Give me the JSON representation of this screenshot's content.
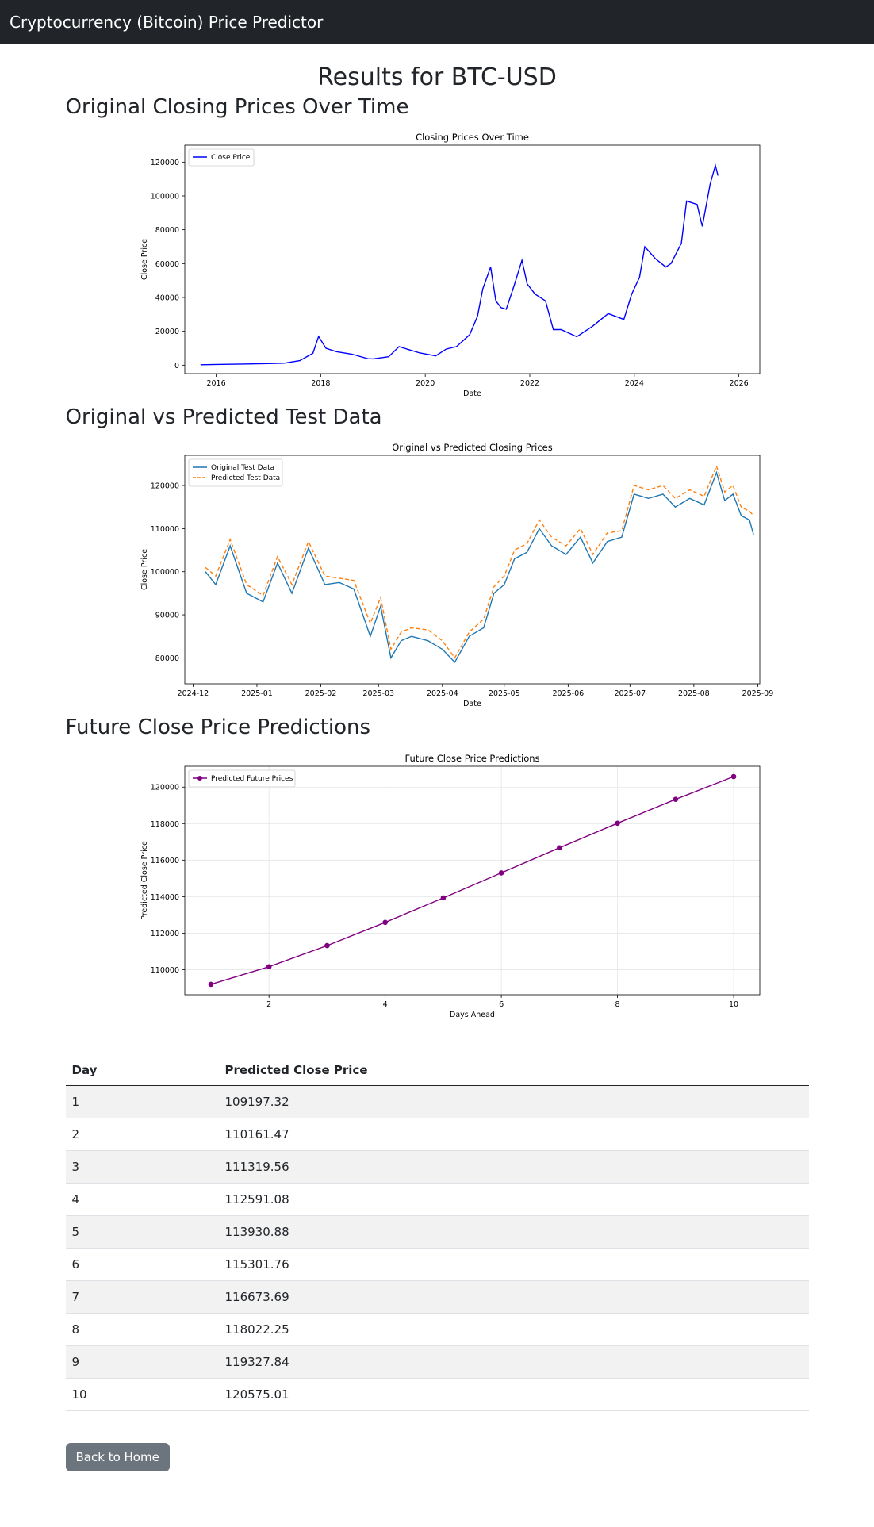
{
  "navbar": {
    "brand": "Cryptocurrency (Bitcoin) Price Predictor"
  },
  "page": {
    "title": "Results for BTC-USD",
    "section1_title": "Original Closing Prices Over Time",
    "section2_title": "Original vs Predicted Test Data",
    "section3_title": "Future Close Price Predictions"
  },
  "colors": {
    "navbar": "#212529",
    "close_price": "#0000ff",
    "original_test": "#1f77b4",
    "predicted_test": "#ff7f0e",
    "future": "#800080",
    "button": "#6c757d"
  },
  "chart_data": [
    {
      "type": "line",
      "title": "Closing Prices Over Time",
      "xlabel": "Date",
      "ylabel": "Close Price",
      "x_ticks": [
        "2016",
        "2018",
        "2020",
        "2022",
        "2024",
        "2026"
      ],
      "y_ticks": [
        "0",
        "20000",
        "40000",
        "60000",
        "80000",
        "100000",
        "120000"
      ],
      "xlim": [
        2015.4,
        2026.4
      ],
      "ylim": [
        -5000,
        130000
      ],
      "legend_position": "upper-left",
      "grid": false,
      "series": [
        {
          "name": "Close Price",
          "x": [
            2015.7,
            2016.0,
            2016.5,
            2017.0,
            2017.3,
            2017.6,
            2017.85,
            2017.96,
            2018.1,
            2018.3,
            2018.6,
            2018.9,
            2019.0,
            2019.3,
            2019.5,
            2019.7,
            2019.9,
            2020.2,
            2020.4,
            2020.6,
            2020.85,
            2021.0,
            2021.1,
            2021.25,
            2021.35,
            2021.45,
            2021.55,
            2021.7,
            2021.85,
            2021.95,
            2022.1,
            2022.3,
            2022.45,
            2022.6,
            2022.9,
            2023.2,
            2023.5,
            2023.8,
            2023.95,
            2024.1,
            2024.2,
            2024.4,
            2024.6,
            2024.7,
            2024.9,
            2025.0,
            2025.2,
            2025.3,
            2025.45,
            2025.55,
            2025.6
          ],
          "values": [
            230,
            430,
            650,
            960,
            1200,
            2700,
            7000,
            17000,
            10000,
            8000,
            6500,
            3800,
            3700,
            5000,
            11000,
            9000,
            7200,
            5500,
            9500,
            11000,
            18000,
            29000,
            45000,
            58000,
            38000,
            34000,
            33000,
            47000,
            62000,
            48000,
            42000,
            38000,
            21000,
            21000,
            16800,
            23000,
            30500,
            27000,
            42000,
            52000,
            70000,
            63000,
            58000,
            60000,
            72000,
            97000,
            95000,
            82000,
            107000,
            118000,
            112000
          ]
        }
      ]
    },
    {
      "type": "line",
      "title": "Original vs Predicted Closing Prices",
      "xlabel": "Date",
      "ylabel": "Close Price",
      "x_ticks": [
        "2024-12",
        "2025-01",
        "2025-02",
        "2025-03",
        "2025-04",
        "2025-05",
        "2025-06",
        "2025-07",
        "2025-08",
        "2025-09"
      ],
      "y_ticks": [
        "80000",
        "90000",
        "100000",
        "110000",
        "120000"
      ],
      "xlim": [
        0,
        279
      ],
      "ylim": [
        74000,
        127000
      ],
      "legend_position": "upper-left",
      "grid": false,
      "series": [
        {
          "name": "Original Test Data",
          "x": [
            10,
            15,
            22,
            30,
            38,
            45,
            52,
            60,
            68,
            75,
            82,
            90,
            95,
            100,
            105,
            110,
            118,
            125,
            131,
            138,
            145,
            150,
            155,
            160,
            166,
            172,
            178,
            185,
            192,
            198,
            205,
            212,
            218,
            225,
            232,
            238,
            245,
            252,
            258,
            262,
            266,
            270,
            274,
            276
          ],
          "values": [
            100000,
            97000,
            106000,
            95000,
            93000,
            102000,
            95000,
            105500,
            97000,
            97500,
            96000,
            85000,
            92000,
            80000,
            84000,
            85000,
            84000,
            82000,
            79000,
            85000,
            87000,
            95000,
            97000,
            103000,
            104500,
            110000,
            106000,
            104000,
            108000,
            102000,
            107000,
            108000,
            118000,
            117000,
            118000,
            115000,
            117000,
            115500,
            123000,
            116500,
            118000,
            113000,
            112000,
            108500
          ]
        },
        {
          "name": "Predicted Test Data",
          "x": [
            10,
            15,
            22,
            30,
            38,
            45,
            52,
            60,
            68,
            75,
            82,
            90,
            95,
            100,
            105,
            110,
            118,
            125,
            131,
            138,
            145,
            150,
            155,
            160,
            166,
            172,
            178,
            185,
            192,
            198,
            205,
            212,
            218,
            225,
            232,
            238,
            245,
            252,
            258,
            262,
            266,
            270,
            274,
            276
          ],
          "values": [
            101000,
            99000,
            107500,
            97000,
            94500,
            103500,
            97000,
            107000,
            99000,
            98500,
            98000,
            88000,
            94000,
            82000,
            86000,
            87000,
            86500,
            84000,
            80000,
            86000,
            89000,
            96500,
            99000,
            105000,
            106500,
            112000,
            108000,
            106000,
            110000,
            104000,
            109000,
            109500,
            120000,
            119000,
            120000,
            117000,
            119000,
            117500,
            124500,
            118500,
            120000,
            115000,
            114000,
            113000
          ]
        }
      ]
    },
    {
      "type": "line",
      "title": "Future Close Price Predictions",
      "xlabel": "Days Ahead",
      "ylabel": "Predicted Close Price",
      "x_ticks": [
        "2",
        "4",
        "6",
        "8",
        "10"
      ],
      "y_ticks": [
        "110000",
        "112000",
        "114000",
        "116000",
        "118000",
        "120000"
      ],
      "xlim": [
        0.55,
        10.45
      ],
      "ylim": [
        108630,
        121140
      ],
      "legend_position": "upper-left",
      "grid": true,
      "series": [
        {
          "name": "Predicted Future Prices",
          "x": [
            1,
            2,
            3,
            4,
            5,
            6,
            7,
            8,
            9,
            10
          ],
          "values": [
            109197.32,
            110161.47,
            111319.56,
            112591.08,
            113930.88,
            115301.76,
            116673.69,
            118022.25,
            119327.84,
            120575.01
          ]
        }
      ]
    }
  ],
  "table": {
    "headers": [
      "Day",
      "Predicted Close Price"
    ],
    "rows": [
      [
        "1",
        "109197.32"
      ],
      [
        "2",
        "110161.47"
      ],
      [
        "3",
        "111319.56"
      ],
      [
        "4",
        "112591.08"
      ],
      [
        "5",
        "113930.88"
      ],
      [
        "6",
        "115301.76"
      ],
      [
        "7",
        "116673.69"
      ],
      [
        "8",
        "118022.25"
      ],
      [
        "9",
        "119327.84"
      ],
      [
        "10",
        "120575.01"
      ]
    ]
  },
  "button": {
    "back_label": "Back to Home"
  }
}
